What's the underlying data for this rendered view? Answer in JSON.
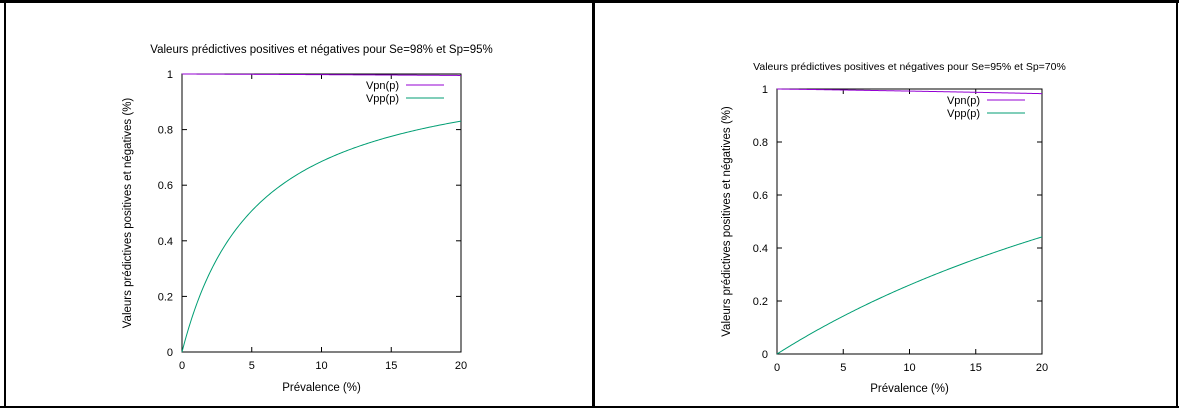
{
  "chart_data": [
    {
      "type": "line",
      "title": "Valeurs prédictives positives et négatives pour Se=98% et Sp=95%",
      "xlabel": "Prévalence (%)",
      "ylabel": "Valeurs prédictives positives et négatives (%)",
      "xlim": [
        0,
        20
      ],
      "ylim": [
        0,
        1
      ],
      "xticks": [
        "0",
        "5",
        "10",
        "15",
        "20"
      ],
      "yticks": [
        "0",
        "0.2",
        "0.4",
        "0.6",
        "0.8",
        "1"
      ],
      "grid": false,
      "legend_position": "top-right",
      "se": 0.98,
      "sp": 0.95,
      "series": [
        {
          "name": "Vpn(p)",
          "color": "#9400d3",
          "x": [
            0,
            5,
            10,
            15,
            20
          ],
          "values": [
            1.0,
            0.9989,
            0.9977,
            0.9963,
            0.9948
          ]
        },
        {
          "name": "Vpp(p)",
          "color": "#009e73",
          "x": [
            0,
            1,
            2,
            3,
            4,
            5,
            6,
            8,
            10,
            12,
            15,
            18,
            20
          ],
          "values": [
            0,
            0.166,
            0.286,
            0.377,
            0.449,
            0.508,
            0.556,
            0.63,
            0.685,
            0.728,
            0.776,
            0.815,
            0.831
          ]
        }
      ]
    },
    {
      "type": "line",
      "title": "Valeurs prédictives positives et négatives pour Se=95% et Sp=70%",
      "xlabel": "Prévalence (%)",
      "ylabel": "Valeurs prédictives positives et négatives (%)",
      "xlim": [
        0,
        20
      ],
      "ylim": [
        0,
        1
      ],
      "xticks": [
        "0",
        "5",
        "10",
        "15",
        "20"
      ],
      "yticks": [
        "0",
        "0.2",
        "0.4",
        "0.6",
        "0.8",
        "1"
      ],
      "grid": false,
      "legend_position": "top-right",
      "se": 0.95,
      "sp": 0.7,
      "series": [
        {
          "name": "Vpn(p)",
          "color": "#9400d3",
          "x": [
            0,
            5,
            10,
            15,
            20
          ],
          "values": [
            1.0,
            0.9962,
            0.9921,
            0.9876,
            0.9825
          ]
        },
        {
          "name": "Vpp(p)",
          "color": "#009e73",
          "x": [
            0,
            2,
            4,
            6,
            8,
            10,
            12,
            15,
            18,
            20
          ],
          "values": [
            0,
            0.0607,
            0.117,
            0.169,
            0.217,
            0.26,
            0.301,
            0.358,
            0.41,
            0.442
          ]
        }
      ]
    }
  ]
}
